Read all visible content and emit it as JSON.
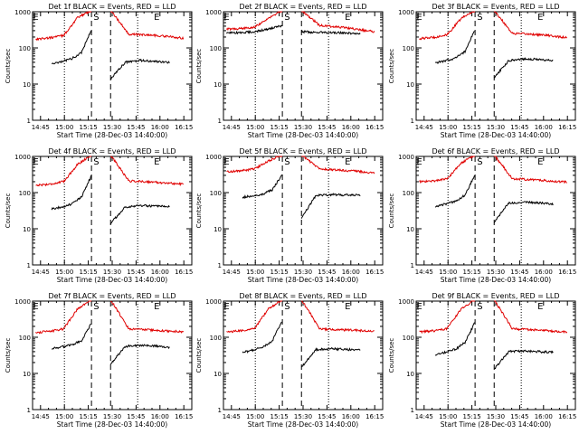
{
  "colors": {
    "events": "#000000",
    "lld": "#e00000",
    "axes": "#000000",
    "background": "#ffffff"
  },
  "chart_data": [
    {
      "type": "line",
      "title": "Det 1f BLACK = Events, RED = LLD",
      "xlabel": "Start Time (28-Dec-03 14:40:00)",
      "ylabel": "Counts/sec",
      "x_ticks": [
        "14:45",
        "15:00",
        "15:15",
        "15:30",
        "15:45",
        "16:00",
        "16:15"
      ],
      "y_ticks": [
        "1",
        "10",
        "100",
        "1000"
      ],
      "ylim": [
        1,
        1000
      ],
      "yscale": "log",
      "grid": false,
      "markers": [
        {
          "label": "E",
          "time": "14:42"
        },
        {
          "label": "S",
          "time": "15:20"
        },
        {
          "label": "E",
          "time": "15:58"
        }
      ],
      "dotted_lines": [
        "15:00",
        "15:46"
      ],
      "dashed_lines": [
        "15:17",
        "15:29"
      ],
      "series": [
        {
          "color": "red",
          "segments": [
            {
              "start": "14:42",
              "end": "15:17",
              "values": [
                175,
                190,
                220,
                680,
                1100
              ]
            },
            {
              "start": "15:29",
              "end": "16:15",
              "values": [
                1100,
                240,
                230,
                210,
                185
              ]
            }
          ]
        },
        {
          "color": "black",
          "segments": [
            {
              "start": "14:52",
              "end": "15:17",
              "values": [
                36,
                42,
                50,
                75,
                320
              ]
            },
            {
              "start": "15:29",
              "end": "16:06",
              "values": [
                14,
                40,
                45,
                42,
                40
              ]
            }
          ]
        }
      ]
    },
    {
      "type": "line",
      "title": "Det 2f BLACK = Events, RED = LLD",
      "xlabel": "Start Time (28-Dec-03 14:40:00)",
      "ylabel": "Counts/sec",
      "x_ticks": [
        "14:45",
        "15:00",
        "15:15",
        "15:30",
        "15:45",
        "16:00",
        "16:15"
      ],
      "y_ticks": [
        "1",
        "10",
        "100",
        "1000"
      ],
      "ylim": [
        1,
        1000
      ],
      "yscale": "log",
      "grid": false,
      "markers": [
        {
          "label": "E",
          "time": "14:42"
        },
        {
          "label": "S",
          "time": "15:20"
        },
        {
          "label": "E",
          "time": "15:58"
        }
      ],
      "dotted_lines": [
        "15:00",
        "15:46"
      ],
      "dashed_lines": [
        "15:17",
        "15:29"
      ],
      "series": [
        {
          "color": "red",
          "segments": [
            {
              "start": "14:42",
              "end": "15:17",
              "values": [
                330,
                340,
                380,
                650,
                1100
              ]
            },
            {
              "start": "15:29",
              "end": "16:15",
              "values": [
                1100,
                420,
                380,
                330,
                280
              ]
            }
          ]
        },
        {
          "color": "black",
          "segments": [
            {
              "start": "14:42",
              "end": "15:17",
              "values": [
                260,
                265,
                280,
                330,
                420
              ]
            },
            {
              "start": "15:29",
              "end": "16:06",
              "values": [
                280,
                270,
                265,
                258,
                250
              ]
            }
          ]
        }
      ]
    },
    {
      "type": "line",
      "title": "Det 3f BLACK = Events, RED = LLD",
      "xlabel": "Start Time (28-Dec-03 14:40:00)",
      "ylabel": "Counts/sec",
      "x_ticks": [
        "14:45",
        "15:00",
        "15:15",
        "15:30",
        "15:45",
        "16:00",
        "16:15"
      ],
      "y_ticks": [
        "1",
        "10",
        "100",
        "1000"
      ],
      "ylim": [
        1,
        1000
      ],
      "yscale": "log",
      "grid": false,
      "markers": [
        {
          "label": "E",
          "time": "14:42"
        },
        {
          "label": "S",
          "time": "15:20"
        },
        {
          "label": "E",
          "time": "15:58"
        }
      ],
      "dotted_lines": [
        "15:00",
        "15:46"
      ],
      "dashed_lines": [
        "15:17",
        "15:29"
      ],
      "series": [
        {
          "color": "red",
          "segments": [
            {
              "start": "14:42",
              "end": "15:17",
              "values": [
                180,
                195,
                230,
                650,
                1100
              ]
            },
            {
              "start": "15:29",
              "end": "16:15",
              "values": [
                1100,
                250,
                240,
                220,
                190
              ]
            }
          ]
        },
        {
          "color": "black",
          "segments": [
            {
              "start": "14:52",
              "end": "15:17",
              "values": [
                38,
                44,
                52,
                80,
                330
              ]
            },
            {
              "start": "15:29",
              "end": "16:06",
              "values": [
                15,
                45,
                50,
                48,
                45
              ]
            }
          ]
        }
      ]
    },
    {
      "type": "line",
      "title": "Det 4f BLACK = Events, RED = LLD",
      "xlabel": "Start Time (28-Dec-03 14:40:00)",
      "ylabel": "Counts/sec",
      "x_ticks": [
        "14:45",
        "15:00",
        "15:15",
        "15:30",
        "15:45",
        "16:00",
        "16:15"
      ],
      "y_ticks": [
        "1",
        "10",
        "100",
        "1000"
      ],
      "ylim": [
        1,
        1000
      ],
      "yscale": "log",
      "grid": false,
      "markers": [
        {
          "label": "E",
          "time": "14:42"
        },
        {
          "label": "S",
          "time": "15:20"
        },
        {
          "label": "E",
          "time": "15:58"
        }
      ],
      "dotted_lines": [
        "15:00",
        "15:46"
      ],
      "dashed_lines": [
        "15:17",
        "15:29"
      ],
      "series": [
        {
          "color": "red",
          "segments": [
            {
              "start": "14:42",
              "end": "15:17",
              "values": [
                160,
                170,
                200,
                600,
                1100
              ]
            },
            {
              "start": "15:29",
              "end": "16:15",
              "values": [
                1100,
                210,
                200,
                185,
                170
              ]
            }
          ]
        },
        {
          "color": "black",
          "segments": [
            {
              "start": "14:52",
              "end": "15:17",
              "values": [
                35,
                40,
                48,
                75,
                300
              ]
            },
            {
              "start": "15:29",
              "end": "16:06",
              "values": [
                14,
                40,
                44,
                42,
                40
              ]
            }
          ]
        }
      ]
    },
    {
      "type": "line",
      "title": "Det 5f BLACK = Events, RED = LLD",
      "xlabel": "Start Time (28-Dec-03 14:40:00)",
      "ylabel": "Counts/sec",
      "x_ticks": [
        "14:45",
        "15:00",
        "15:15",
        "15:30",
        "15:45",
        "16:00",
        "16:15"
      ],
      "y_ticks": [
        "1",
        "10",
        "100",
        "1000"
      ],
      "ylim": [
        1,
        1000
      ],
      "yscale": "log",
      "grid": false,
      "markers": [
        {
          "label": "E",
          "time": "14:42"
        },
        {
          "label": "S",
          "time": "15:20"
        },
        {
          "label": "E",
          "time": "15:58"
        }
      ],
      "dotted_lines": [
        "15:00",
        "15:46"
      ],
      "dashed_lines": [
        "15:17",
        "15:29"
      ],
      "series": [
        {
          "color": "red",
          "segments": [
            {
              "start": "14:42",
              "end": "15:17",
              "values": [
                380,
                400,
                450,
                750,
                1100
              ]
            },
            {
              "start": "15:29",
              "end": "16:15",
              "values": [
                1100,
                450,
                420,
                390,
                340
              ]
            }
          ]
        },
        {
          "color": "black",
          "segments": [
            {
              "start": "14:52",
              "end": "15:17",
              "values": [
                75,
                80,
                90,
                120,
                320
              ]
            },
            {
              "start": "15:29",
              "end": "16:06",
              "values": [
                20,
                85,
                88,
                86,
                84
              ]
            }
          ]
        }
      ]
    },
    {
      "type": "line",
      "title": "Det 6f BLACK = Events, RED = LLD",
      "xlabel": "Start Time (28-Dec-03 14:40:00)",
      "ylabel": "Counts/sec",
      "x_ticks": [
        "14:45",
        "15:00",
        "15:15",
        "15:30",
        "15:45",
        "16:00",
        "16:15"
      ],
      "y_ticks": [
        "1",
        "10",
        "100",
        "1000"
      ],
      "ylim": [
        1,
        1000
      ],
      "yscale": "log",
      "grid": false,
      "markers": [
        {
          "label": "E",
          "time": "14:42"
        },
        {
          "label": "S",
          "time": "15:20"
        },
        {
          "label": "E",
          "time": "15:58"
        }
      ],
      "dotted_lines": [
        "15:00",
        "15:46"
      ],
      "dashed_lines": [
        "15:17",
        "15:29"
      ],
      "series": [
        {
          "color": "red",
          "segments": [
            {
              "start": "14:42",
              "end": "15:17",
              "values": [
                200,
                210,
                240,
                650,
                1100
              ]
            },
            {
              "start": "15:29",
              "end": "16:15",
              "values": [
                1100,
                240,
                230,
                210,
                195
              ]
            }
          ]
        },
        {
          "color": "black",
          "segments": [
            {
              "start": "14:52",
              "end": "15:17",
              "values": [
                42,
                48,
                56,
                85,
                320
              ]
            },
            {
              "start": "15:29",
              "end": "16:06",
              "values": [
                15,
                52,
                54,
                52,
                48
              ]
            }
          ]
        }
      ]
    },
    {
      "type": "line",
      "title": "Det 7f BLACK = Events, RED = LLD",
      "xlabel": "Start Time (28-Dec-03 14:40:00)",
      "ylabel": "Counts/sec",
      "x_ticks": [
        "14:45",
        "15:00",
        "15:15",
        "15:30",
        "15:45",
        "16:00",
        "16:15"
      ],
      "y_ticks": [
        "1",
        "10",
        "100",
        "1000"
      ],
      "ylim": [
        1,
        1000
      ],
      "yscale": "log",
      "grid": false,
      "markers": [
        {
          "label": "E",
          "time": "14:42"
        },
        {
          "label": "S",
          "time": "15:20"
        },
        {
          "label": "E",
          "time": "15:58"
        }
      ],
      "dotted_lines": [
        "15:00",
        "15:46"
      ],
      "dashed_lines": [
        "15:17",
        "15:29"
      ],
      "series": [
        {
          "color": "red",
          "segments": [
            {
              "start": "14:42",
              "end": "15:17",
              "values": [
                135,
                145,
                170,
                600,
                1100
              ]
            },
            {
              "start": "15:29",
              "end": "16:15",
              "values": [
                1100,
                170,
                160,
                150,
                140
              ]
            }
          ]
        },
        {
          "color": "black",
          "segments": [
            {
              "start": "14:52",
              "end": "15:17",
              "values": [
                48,
                54,
                62,
                80,
                250
              ]
            },
            {
              "start": "15:29",
              "end": "16:06",
              "values": [
                18,
                56,
                60,
                58,
                52
              ]
            }
          ]
        }
      ]
    },
    {
      "type": "line",
      "title": "Det 8f BLACK = Events, RED = LLD",
      "xlabel": "Start Time (28-Dec-03 14:40:00)",
      "ylabel": "Counts/sec",
      "x_ticks": [
        "14:45",
        "15:00",
        "15:15",
        "15:30",
        "15:45",
        "16:00",
        "16:15"
      ],
      "y_ticks": [
        "1",
        "10",
        "100",
        "1000"
      ],
      "ylim": [
        1,
        1000
      ],
      "yscale": "log",
      "grid": false,
      "markers": [
        {
          "label": "E",
          "time": "14:42"
        },
        {
          "label": "S",
          "time": "15:20"
        },
        {
          "label": "E",
          "time": "15:58"
        }
      ],
      "dotted_lines": [
        "15:00",
        "15:46"
      ],
      "dashed_lines": [
        "15:17",
        "15:29"
      ],
      "series": [
        {
          "color": "red",
          "segments": [
            {
              "start": "14:42",
              "end": "15:17",
              "values": [
                140,
                150,
                175,
                600,
                1100
              ]
            },
            {
              "start": "15:29",
              "end": "16:15",
              "values": [
                1100,
                170,
                160,
                155,
                145
              ]
            }
          ]
        },
        {
          "color": "black",
          "segments": [
            {
              "start": "14:52",
              "end": "15:17",
              "values": [
                38,
                44,
                52,
                80,
                300
              ]
            },
            {
              "start": "15:29",
              "end": "16:06",
              "values": [
                15,
                46,
                48,
                46,
                44
              ]
            }
          ]
        }
      ]
    },
    {
      "type": "line",
      "title": "Det 9f BLACK = Events, RED = LLD",
      "xlabel": "Start Time (28-Dec-03 14:40:00)",
      "ylabel": "Counts/sec",
      "x_ticks": [
        "14:45",
        "15:00",
        "15:15",
        "15:30",
        "15:45",
        "16:00",
        "16:15"
      ],
      "y_ticks": [
        "1",
        "10",
        "100",
        "1000"
      ],
      "ylim": [
        1,
        1000
      ],
      "yscale": "log",
      "grid": false,
      "markers": [
        {
          "label": "E",
          "time": "14:42"
        },
        {
          "label": "S",
          "time": "15:20"
        },
        {
          "label": "E",
          "time": "15:58"
        }
      ],
      "dotted_lines": [
        "15:00",
        "15:46"
      ],
      "dashed_lines": [
        "15:17",
        "15:29"
      ],
      "series": [
        {
          "color": "red",
          "segments": [
            {
              "start": "14:42",
              "end": "15:17",
              "values": [
                140,
                150,
                175,
                600,
                1100
              ]
            },
            {
              "start": "15:29",
              "end": "16:15",
              "values": [
                1100,
                170,
                160,
                150,
                140
              ]
            }
          ]
        },
        {
          "color": "black",
          "segments": [
            {
              "start": "14:52",
              "end": "15:17",
              "values": [
                32,
                38,
                46,
                72,
                260
              ]
            },
            {
              "start": "15:29",
              "end": "16:06",
              "values": [
                13,
                40,
                42,
                40,
                38
              ]
            }
          ]
        }
      ]
    }
  ]
}
